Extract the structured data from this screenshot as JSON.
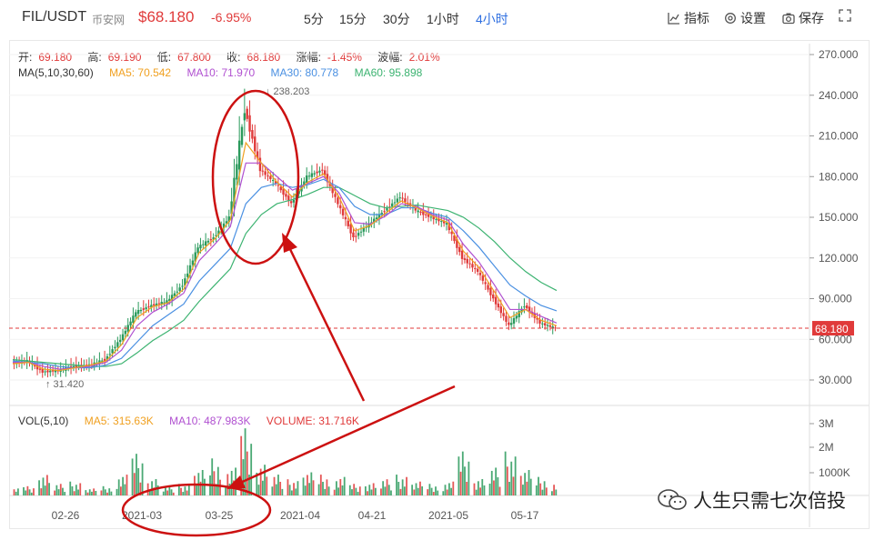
{
  "header": {
    "pair": "FIL/USDT",
    "exchange": "币安网",
    "price": "$68.180",
    "change": "-6.95%",
    "timeframes": [
      {
        "label": "5分",
        "active": false
      },
      {
        "label": "15分",
        "active": false
      },
      {
        "label": "30分",
        "active": false
      },
      {
        "label": "1小时",
        "active": false
      },
      {
        "label": "4小时",
        "active": true
      }
    ],
    "tools": {
      "indicators": "指标",
      "settings": "设置",
      "save": "保存"
    }
  },
  "ohlc": {
    "open_label": "开:",
    "open": "69.180",
    "high_label": "高:",
    "high": "69.190",
    "low_label": "低:",
    "low": "67.800",
    "close_label": "收:",
    "close": "68.180",
    "change_label": "涨幅:",
    "change": "-1.45%",
    "amp_label": "波幅:",
    "amp": "2.01%"
  },
  "ma": {
    "label": "MA(5,10,30,60)",
    "ma5": "MA5: 70.542",
    "ma10": "MA10: 71.970",
    "ma30": "MA30: 80.778",
    "ma60": "MA60: 95.898"
  },
  "vol": {
    "label": "VOL(5,10)",
    "ma5": "MA5: 315.63K",
    "ma10": "MA10: 487.983K",
    "volume": "VOLUME: 31.716K"
  },
  "colors": {
    "up": "#2a9a5c",
    "down": "#e03a3a",
    "ma5": "#f0a020",
    "ma10": "#b050d0",
    "ma30": "#4a90e2",
    "ma60": "#3cb371",
    "annotation": "#cc1111",
    "active_tab": "#2f6fe0"
  },
  "chart_data": {
    "type": "candlestick",
    "price_axis_ticks": [
      "270.000",
      "240.000",
      "210.000",
      "180.000",
      "150.000",
      "120.000",
      "90.000",
      "60.000",
      "30.000"
    ],
    "ylim": [
      15,
      282
    ],
    "volume_axis_ticks": [
      "3M",
      "2M",
      "1000K"
    ],
    "date_ticks": [
      "02-26",
      "2021-03",
      "03-25",
      "2021-04",
      "04-21",
      "2021-05",
      "05-17"
    ],
    "last_price_label": "68.180",
    "max_label": "238.203",
    "min_label": "31.420",
    "trend": {
      "x": [
        "02-12",
        "02-20",
        "02-26",
        "03-01",
        "03-05",
        "03-09",
        "03-12",
        "03-15",
        "03-19",
        "03-22",
        "03-25",
        "03-27",
        "03-29",
        "03-31",
        "04-01",
        "04-03",
        "04-06",
        "04-09",
        "04-12",
        "04-16",
        "04-19",
        "04-21",
        "04-24",
        "04-27",
        "04-30",
        "05-02",
        "05-05",
        "05-08",
        "05-10",
        "05-12",
        "05-14",
        "05-16",
        "05-17",
        "05-19",
        "05-20",
        "05-22"
      ],
      "close": [
        42,
        44,
        36,
        37,
        40,
        41,
        45,
        60,
        80,
        85,
        88,
        100,
        128,
        135,
        150,
        230,
        185,
        175,
        160,
        180,
        185,
        160,
        135,
        145,
        155,
        165,
        155,
        150,
        145,
        120,
        110,
        90,
        70,
        85,
        72,
        68
      ]
    },
    "ma": {
      "ma5": [
        42,
        43,
        38,
        37,
        39,
        41,
        44,
        56,
        76,
        84,
        87,
        97,
        124,
        134,
        148,
        205,
        190,
        176,
        165,
        176,
        182,
        165,
        140,
        144,
        153,
        162,
        157,
        151,
        146,
        125,
        113,
        95,
        76,
        82,
        74,
        70
      ],
      "ma10": [
        43,
        43,
        40,
        38,
        39,
        40,
        43,
        52,
        70,
        80,
        86,
        94,
        118,
        130,
        143,
        190,
        190,
        180,
        170,
        175,
        180,
        168,
        146,
        145,
        151,
        160,
        158,
        152,
        148,
        130,
        117,
        100,
        82,
        82,
        77,
        72
      ],
      "ma30": [
        44,
        43,
        42,
        40,
        39,
        39,
        41,
        46,
        58,
        70,
        78,
        86,
        103,
        115,
        127,
        160,
        172,
        175,
        172,
        174,
        178,
        172,
        158,
        152,
        152,
        157,
        157,
        153,
        150,
        140,
        128,
        114,
        100,
        92,
        85,
        81
      ],
      "ma60": [
        45,
        44,
        43,
        42,
        41,
        40,
        40,
        42,
        50,
        59,
        66,
        74,
        88,
        100,
        112,
        138,
        152,
        160,
        163,
        167,
        172,
        172,
        166,
        160,
        157,
        158,
        159,
        157,
        155,
        150,
        142,
        132,
        120,
        110,
        102,
        96
      ]
    },
    "volume": [
      0.3,
      0.4,
      1.0,
      0.5,
      0.6,
      0.3,
      0.4,
      0.9,
      1.8,
      0.8,
      0.4,
      0.5,
      1.1,
      1.6,
      1.2,
      2.9,
      1.5,
      0.9,
      0.7,
      1.0,
      0.9,
      0.8,
      0.5,
      0.6,
      0.7,
      0.9,
      0.6,
      0.5,
      0.6,
      1.9,
      0.8,
      1.2,
      1.9,
      1.1,
      0.8,
      0.6
    ]
  },
  "watermark": {
    "text": "人生只需七次倍投"
  }
}
